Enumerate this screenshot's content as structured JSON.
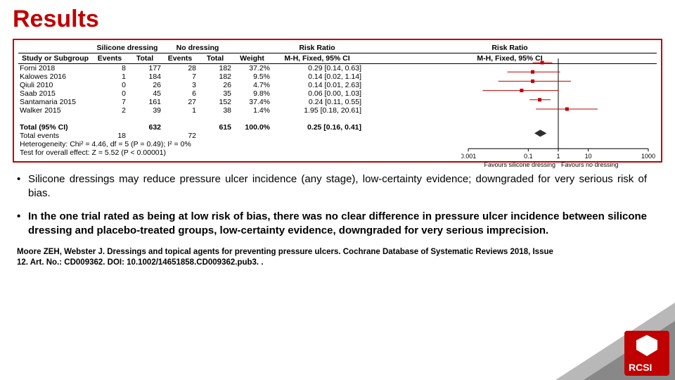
{
  "title": "Results",
  "colors": {
    "accent": "#c00000",
    "marker": "#c00000",
    "diamond": "#2f2f2f",
    "axis": "#000000",
    "bg": "#ffffff"
  },
  "headers": {
    "study": "Study or Subgroup",
    "group1": "Silicone dressing",
    "group2": "No dressing",
    "events": "Events",
    "total": "Total",
    "weight": "Weight",
    "rr1": "Risk Ratio",
    "rr2": "Risk Ratio",
    "method": "M-H, Fixed, 95% CI"
  },
  "rows": [
    {
      "study": "Forni 2018",
      "e1": "8",
      "t1": "177",
      "e2": "28",
      "t2": "182",
      "w": "37.2%",
      "rr": "0.29 [0.14, 0.63]",
      "pt": 0.29,
      "lo": 0.14,
      "hi": 0.63
    },
    {
      "study": "Kalowes 2016",
      "e1": "1",
      "t1": "184",
      "e2": "7",
      "t2": "182",
      "w": "9.5%",
      "rr": "0.14 [0.02, 1.14]",
      "pt": 0.14,
      "lo": 0.02,
      "hi": 1.14
    },
    {
      "study": "Qiuli 2010",
      "e1": "0",
      "t1": "26",
      "e2": "3",
      "t2": "26",
      "w": "4.7%",
      "rr": "0.14 [0.01, 2.63]",
      "pt": 0.14,
      "lo": 0.01,
      "hi": 2.63
    },
    {
      "study": "Saab 2015",
      "e1": "0",
      "t1": "45",
      "e2": "6",
      "t2": "35",
      "w": "9.8%",
      "rr": "0.06 [0.00, 1.03]",
      "pt": 0.06,
      "lo": 0.003,
      "hi": 1.03
    },
    {
      "study": "Santamaria 2015",
      "e1": "7",
      "t1": "161",
      "e2": "27",
      "t2": "152",
      "w": "37.4%",
      "rr": "0.24 [0.11, 0.55]",
      "pt": 0.24,
      "lo": 0.11,
      "hi": 0.55
    },
    {
      "study": "Walker 2015",
      "e1": "2",
      "t1": "39",
      "e2": "1",
      "t2": "38",
      "w": "1.4%",
      "rr": "1.95 [0.18, 20.61]",
      "pt": 1.95,
      "lo": 0.18,
      "hi": 20.61
    }
  ],
  "totals": {
    "label": "Total (95% CI)",
    "t1": "632",
    "t2": "615",
    "w": "100.0%",
    "rr": "0.25 [0.16, 0.41]",
    "pt": 0.25,
    "lo": 0.16,
    "hi": 0.41,
    "events_label": "Total events",
    "e1": "18",
    "e2": "72"
  },
  "footer": {
    "het": "Heterogeneity: Chi² = 4.46, df = 5 (P = 0.49); I² = 0%",
    "test": "Test for overall effect: Z = 5.52 (P < 0.00001)"
  },
  "axis": {
    "ticks": [
      "0.001",
      "0.1",
      "1",
      "10",
      "1000"
    ],
    "left_label": "Favours silicone dressing",
    "right_label": "Favours no dressing",
    "xmin": 0.001,
    "xmax": 1000
  },
  "bullets": [
    "Silicone dressings may reduce pressure ulcer incidence (any stage), low-certainty evidence; downgraded for very serious risk of bias.",
    "In the one trial rated as being at low risk of bias, there was no clear difference in pressure ulcer incidence between silicone dressing and placebo-treated groups, low-certainty evidence, downgraded for very serious imprecision."
  ],
  "citation": "Moore ZEH, Webster J. Dressings and topical agents for preventing pressure ulcers. Cochrane Database of Systematic Reviews 2018, Issue 12. Art. No.: CD009362. DOI: 10.1002/14651858.CD009362.pub3. .",
  "logo_text": "RCSI"
}
